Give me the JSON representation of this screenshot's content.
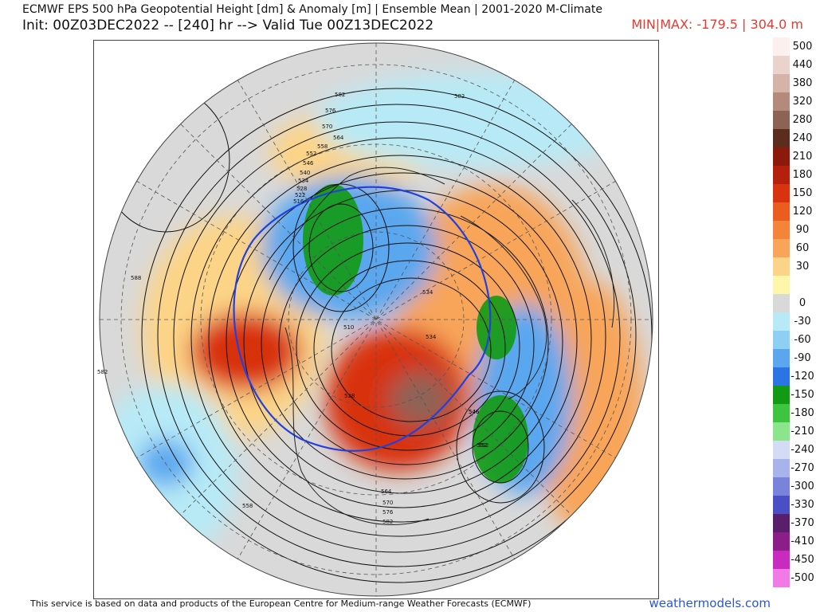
{
  "header": {
    "title_line1": "ECMWF EPS 500 hPa Geopotential Height [dm] & Anomaly [m] | Ensemble Mean | 2001-2020 M-Climate",
    "title_line2": "Init: 00Z03DEC2022 -- [240] hr --> Valid Tue 00Z13DEC2022",
    "minmax": "MIN|MAX: -179.5 | 304.0 m"
  },
  "map": {
    "contour_labels": [
      "582",
      "576",
      "570",
      "564",
      "558",
      "552",
      "546",
      "540",
      "534",
      "528",
      "522",
      "516",
      "510",
      "588",
      "582",
      "582",
      "558",
      "552",
      "546",
      "534",
      "528",
      "534",
      "546",
      "552",
      "564",
      "570",
      "576",
      "582"
    ]
  },
  "legend": {
    "items": [
      {
        "label": "500",
        "color": "#fbf0ee"
      },
      {
        "label": "440",
        "color": "#ead3cd"
      },
      {
        "label": "380",
        "color": "#d5b3a8"
      },
      {
        "label": "320",
        "color": "#b48a7c"
      },
      {
        "label": "280",
        "color": "#8d6356"
      },
      {
        "label": "240",
        "color": "#5c2c1e"
      },
      {
        "label": "210",
        "color": "#8c1a0c"
      },
      {
        "label": "180",
        "color": "#b4200c"
      },
      {
        "label": "150",
        "color": "#d8320e"
      },
      {
        "label": "120",
        "color": "#ea5c20"
      },
      {
        "label": "90",
        "color": "#f3843a"
      },
      {
        "label": "60",
        "color": "#f8a55a"
      },
      {
        "label": "30",
        "color": "#fcd487"
      },
      {
        "label": "",
        "color": "#fef6a8"
      },
      {
        "label": "0",
        "color": "#d9d9d9"
      },
      {
        "label": "-30",
        "color": "#b7eaf6"
      },
      {
        "label": "-60",
        "color": "#8ed0f4"
      },
      {
        "label": "-90",
        "color": "#5aa7ef"
      },
      {
        "label": "-120",
        "color": "#2b74e3"
      },
      {
        "label": "-150",
        "color": "#129a12"
      },
      {
        "label": "-180",
        "color": "#3fc43f"
      },
      {
        "label": "-210",
        "color": "#8be68b"
      },
      {
        "label": "-240",
        "color": "#d4dbf5"
      },
      {
        "label": "-270",
        "color": "#a8b3ec"
      },
      {
        "label": "-300",
        "color": "#7a83dc"
      },
      {
        "label": "-330",
        "color": "#4a4fc6"
      },
      {
        "label": "-370",
        "color": "#5a1f6a"
      },
      {
        "label": "-410",
        "color": "#8c1e8a"
      },
      {
        "label": "-450",
        "color": "#c92bc0"
      },
      {
        "label": "-500",
        "color": "#f27ae6"
      }
    ]
  },
  "footer": {
    "attribution": "This service is based on data and products of the European Centre for Medium-range Weather Forecasts (ECMWF)",
    "brand": "weathermodels.com"
  }
}
